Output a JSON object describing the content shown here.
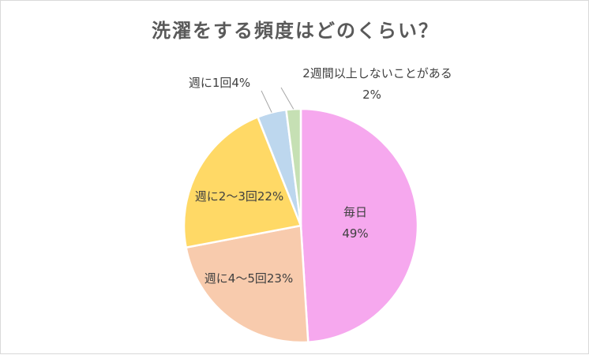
{
  "chart_data": {
    "type": "pie",
    "title": "洗濯をする頻度はどのくらい？",
    "slices": [
      {
        "name": "毎日",
        "label": "毎日",
        "value": 49,
        "value_label": "49%",
        "color": "#F6A8EE"
      },
      {
        "name": "週に4～5回",
        "label": "週に4～5回23%",
        "value": 23,
        "color": "#F8CBAD"
      },
      {
        "name": "週に2～3回",
        "label": "週に2～3回22%",
        "value": 22,
        "color": "#FFD966"
      },
      {
        "name": "週に1回",
        "label": "週に1回4%",
        "value": 4,
        "color": "#BDD7EE"
      },
      {
        "name": "2週間以上しないことがある",
        "label": "2週間以上しないことがある",
        "value": 2,
        "value_label": "2%",
        "color": "#C6E0B4"
      }
    ],
    "legend": "none",
    "start": "top",
    "direction": "clockwise"
  }
}
